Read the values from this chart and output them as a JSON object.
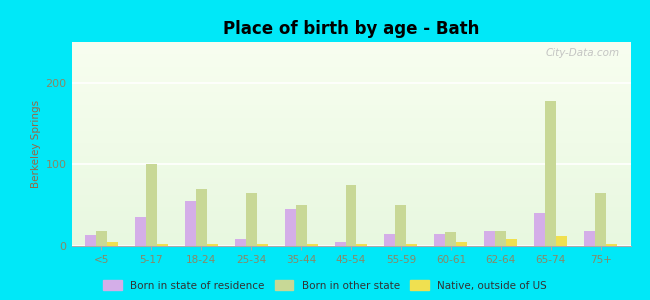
{
  "title": "Place of birth by age - Bath",
  "ylabel": "Berkeley Springs",
  "categories": [
    "<5",
    "5-17",
    "18-24",
    "25-34",
    "35-44",
    "45-54",
    "55-59",
    "60-61",
    "62-64",
    "65-74",
    "75+"
  ],
  "born_in_state": [
    13,
    35,
    55,
    8,
    45,
    5,
    15,
    15,
    18,
    40,
    18
  ],
  "born_other_state": [
    18,
    100,
    70,
    65,
    50,
    75,
    50,
    17,
    18,
    178,
    65
  ],
  "native_outside_us": [
    5,
    3,
    3,
    3,
    3,
    3,
    3,
    5,
    8,
    12,
    3
  ],
  "color_state": "#d4aee8",
  "color_other": "#c8d896",
  "color_native": "#f0e050",
  "bg_outer": "#00e8f8",
  "bg_plot_top": "#f8fef0",
  "bg_plot_bottom": "#e8f8e0",
  "ylim": [
    0,
    250
  ],
  "yticks": [
    0,
    100,
    200
  ],
  "bar_width": 0.22,
  "legend_labels": [
    "Born in state of residence",
    "Born in other state",
    "Native, outside of US"
  ],
  "tick_color": "#888866",
  "ylabel_color": "#996644",
  "grid_color": "#ffffff",
  "watermark": "City-Data.com"
}
